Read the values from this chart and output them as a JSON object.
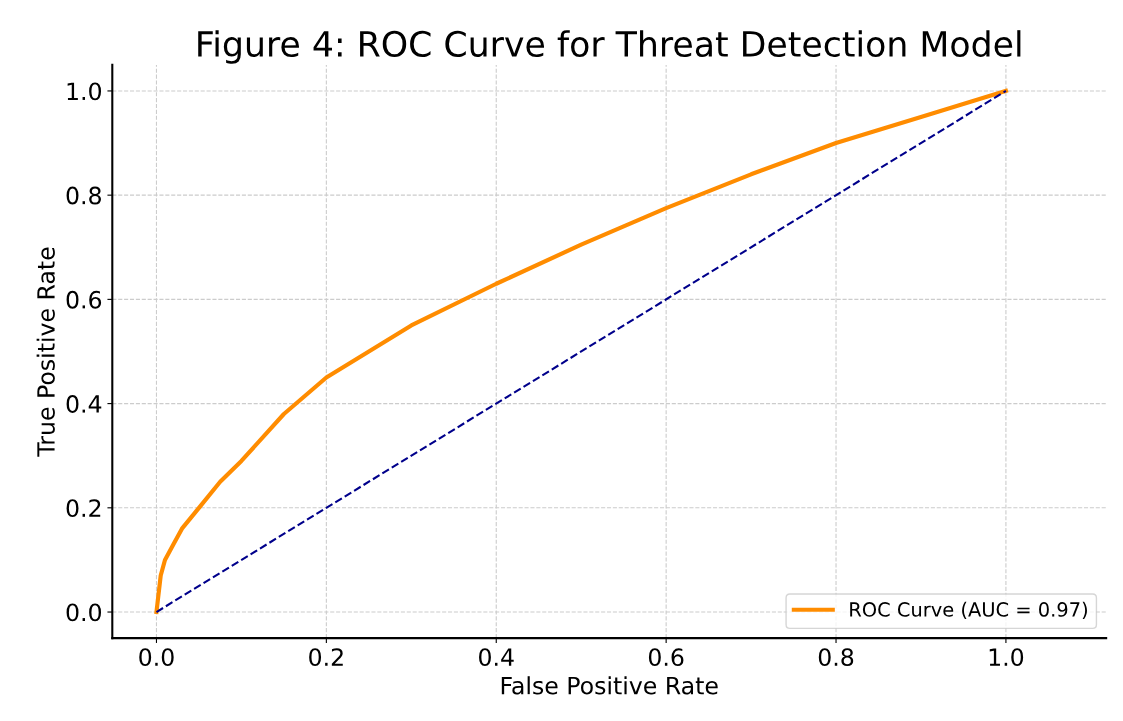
{
  "chart_data": {
    "type": "line",
    "title": "Figure 4: ROC Curve for Threat Detection Model",
    "xlabel": "False Positive Rate",
    "ylabel": "True Positive Rate",
    "xlim": [
      -0.052,
      1.118
    ],
    "ylim": [
      -0.05,
      1.05
    ],
    "xticks": [
      {
        "value": 0,
        "label": "0.0"
      },
      {
        "value": 0.2,
        "label": "0.2"
      },
      {
        "value": 0.4,
        "label": "0.4"
      },
      {
        "value": 0.6,
        "label": "0.6"
      },
      {
        "value": 0.8,
        "label": "0.8"
      },
      {
        "value": 1,
        "label": "1.0"
      }
    ],
    "yticks": [
      {
        "value": 0,
        "label": "0.0"
      },
      {
        "value": 0.2,
        "label": "0.2"
      },
      {
        "value": 0.4,
        "label": "0.4"
      },
      {
        "value": 0.6,
        "label": "0.6"
      },
      {
        "value": 0.8,
        "label": "0.8"
      },
      {
        "value": 1,
        "label": "1.0"
      }
    ],
    "grid": true,
    "legend": "bottom right",
    "marker": "none",
    "series": [
      {
        "name": "ROC Curve (AUC = 0.97)",
        "color": "#ff8c00",
        "line_style": "solid",
        "x": [
          0,
          0.005,
          0.01,
          0.02,
          0.03,
          0.05,
          0.075,
          0.1,
          0.15,
          0.2,
          0.25,
          0.3,
          0.4,
          0.5,
          0.6,
          0.7,
          0.8,
          0.9,
          1.0
        ],
        "values": [
          0,
          0.07,
          0.1,
          0.13,
          0.16,
          0.2,
          0.25,
          0.29,
          0.38,
          0.45,
          0.5,
          0.55,
          0.63,
          0.705,
          0.775,
          0.84,
          0.9,
          0.95,
          1.0
        ]
      },
      {
        "color": "#00008b",
        "line_style": "dashed",
        "x": [
          0,
          1
        ],
        "values": [
          0,
          1
        ]
      }
    ]
  }
}
